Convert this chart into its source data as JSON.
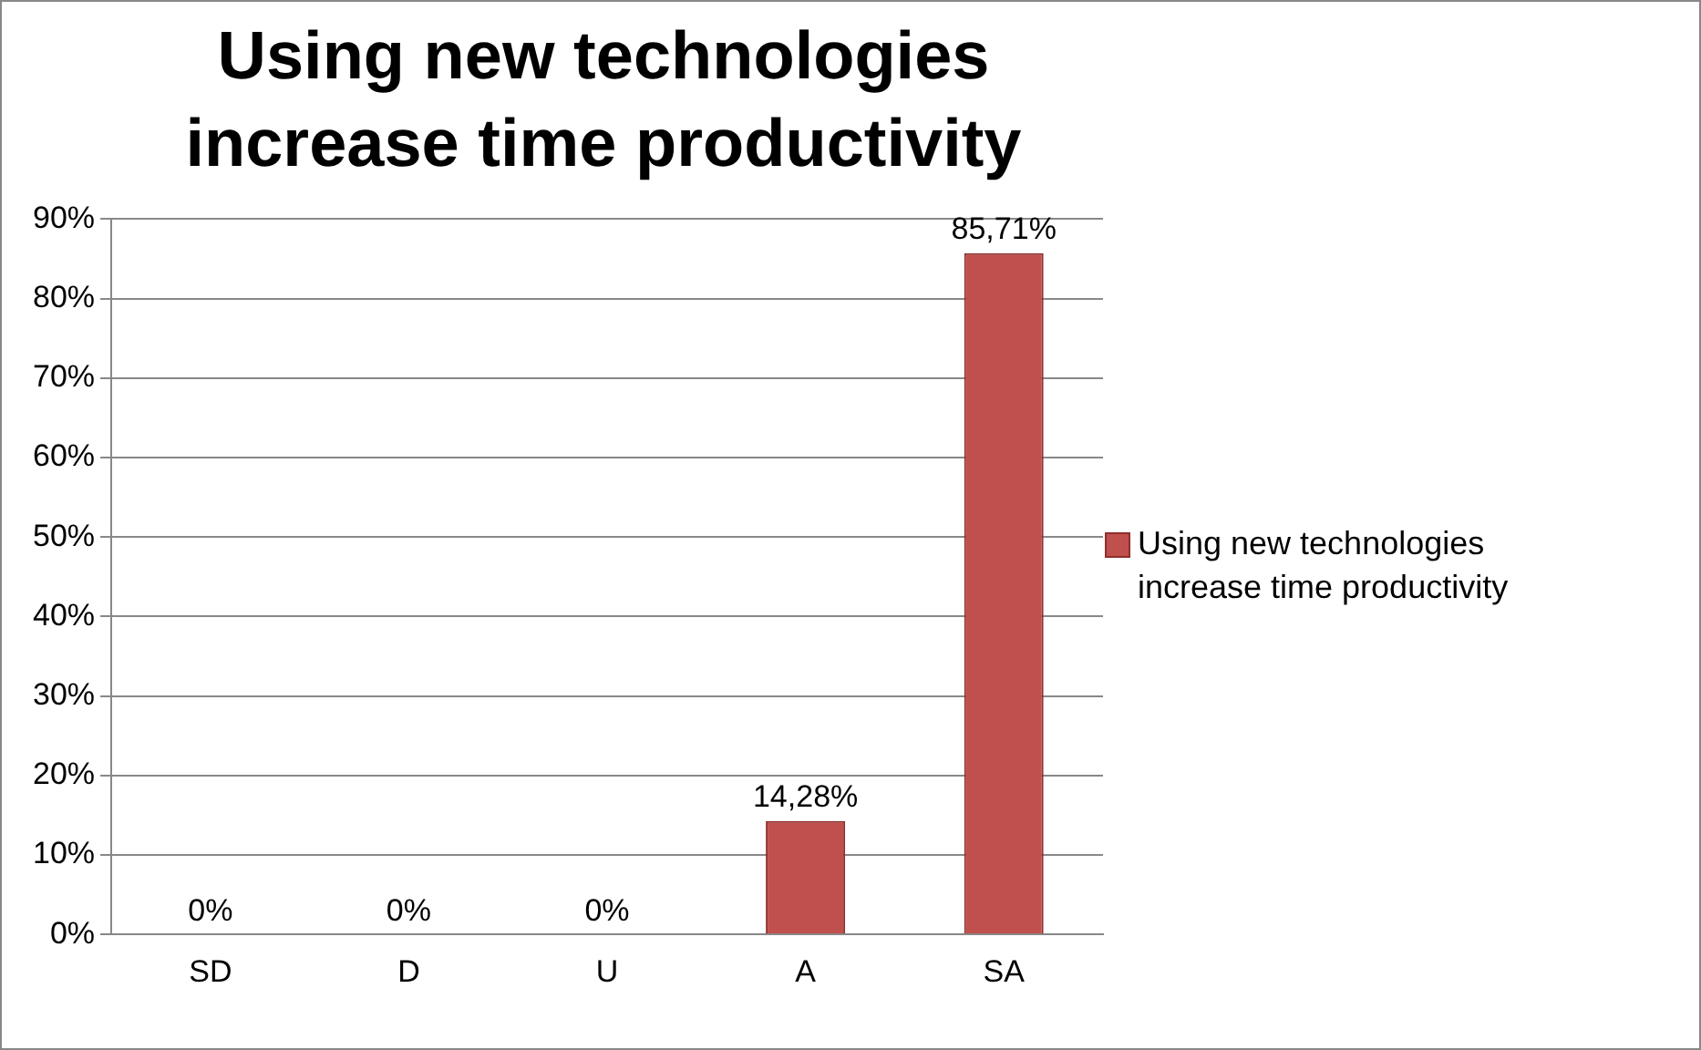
{
  "chart_data": {
    "type": "bar",
    "title": "Using new technologies increase time productivity",
    "categories": [
      "SD",
      "D",
      "U",
      "A",
      "SA"
    ],
    "series": [
      {
        "name": "Using new technologies increase time productivity",
        "color": "#c0504d",
        "values": [
          0,
          0,
          0,
          14.28,
          85.71
        ],
        "value_labels": [
          "0%",
          "0%",
          "0%",
          "14,28%",
          "85,71%"
        ]
      }
    ],
    "ylim": [
      0,
      90
    ],
    "yticks": [
      {
        "value": 0,
        "label": "0%"
      },
      {
        "value": 10,
        "label": "10%"
      },
      {
        "value": 20,
        "label": "20%"
      },
      {
        "value": 30,
        "label": "30%"
      },
      {
        "value": 40,
        "label": "40%"
      },
      {
        "value": 50,
        "label": "50%"
      },
      {
        "value": 60,
        "label": "60%"
      },
      {
        "value": 70,
        "label": "70%"
      },
      {
        "value": 80,
        "label": "80%"
      },
      {
        "value": 90,
        "label": "90%"
      }
    ],
    "grid": "y",
    "legend": "right"
  }
}
